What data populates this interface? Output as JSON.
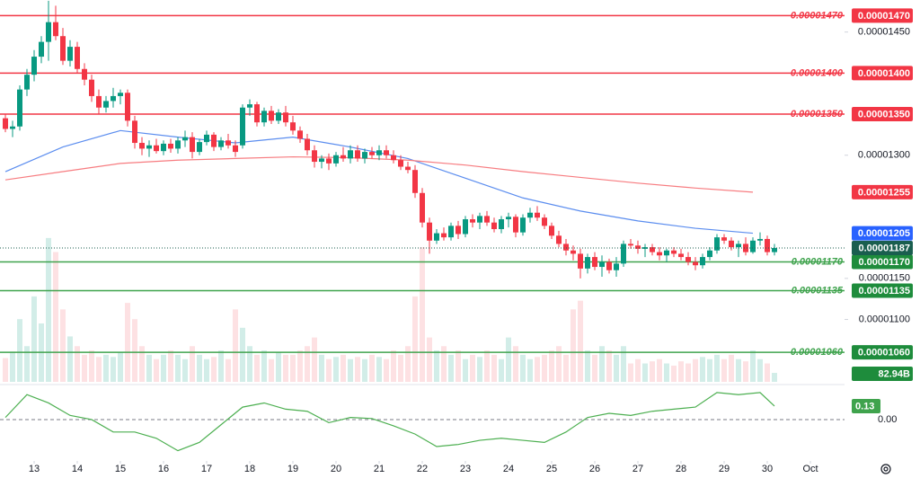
{
  "chart_data": {
    "type": "candlestick",
    "xlim": [
      -0.75,
      116.75
    ],
    "xticks": [
      {
        "value": 4,
        "label": "13"
      },
      {
        "value": 10,
        "label": "14"
      },
      {
        "value": 16,
        "label": "15"
      },
      {
        "value": 22,
        "label": "16"
      },
      {
        "value": 28,
        "label": "17"
      },
      {
        "value": 34,
        "label": "18"
      },
      {
        "value": 40,
        "label": "19"
      },
      {
        "value": 46,
        "label": "20"
      },
      {
        "value": 52,
        "label": "21"
      },
      {
        "value": 58,
        "label": "22"
      },
      {
        "value": 64,
        "label": "23"
      },
      {
        "value": 70,
        "label": "24"
      },
      {
        "value": 76,
        "label": "25"
      },
      {
        "value": 82,
        "label": "26"
      },
      {
        "value": 88,
        "label": "27"
      },
      {
        "value": 94,
        "label": "28"
      },
      {
        "value": 100,
        "label": "29"
      },
      {
        "value": 106,
        "label": "30"
      },
      {
        "value": 112,
        "label": "Oct"
      }
    ],
    "ylim": [
      1.024e-05,
      1.489e-05
    ],
    "yticks": [
      {
        "value": 1.45e-05,
        "label": "0.00001450"
      },
      {
        "value": 1.3e-05,
        "label": "0.00001300"
      },
      {
        "value": 1.15e-05,
        "label": "0.00001150"
      },
      {
        "value": 1.1e-05,
        "label": "0.00001100"
      }
    ],
    "up_color": "#089981",
    "down_color": "#f23645",
    "ohlc": [
      [
        1.345e-05,
        1.35e-05,
        1.328e-05,
        1.332e-05
      ],
      [
        1.332e-05,
        1.342e-05,
        1.322e-05,
        1.335e-05
      ],
      [
        1.335e-05,
        1.385e-05,
        1.33e-05,
        1.38e-05
      ],
      [
        1.38e-05,
        1.405e-05,
        1.372e-05,
        1.398e-05
      ],
      [
        1.398e-05,
        1.428e-05,
        1.39e-05,
        1.42e-05
      ],
      [
        1.42e-05,
        1.445e-05,
        1.412e-05,
        1.438e-05
      ],
      [
        1.438e-05,
        1.488e-05,
        1.415e-05,
        1.462e-05
      ],
      [
        1.462e-05,
        1.482e-05,
        1.44e-05,
        1.445e-05
      ],
      [
        1.445e-05,
        1.455e-05,
        1.41e-05,
        1.415e-05
      ],
      [
        1.415e-05,
        1.44e-05,
        1.408e-05,
        1.432e-05
      ],
      [
        1.432e-05,
        1.438e-05,
        1.4e-05,
        1.405e-05
      ],
      [
        1.405e-05,
        1.412e-05,
        1.385e-05,
        1.392e-05
      ],
      [
        1.392e-05,
        1.398e-05,
        1.365e-05,
        1.372e-05
      ],
      [
        1.372e-05,
        1.38e-05,
        1.35e-05,
        1.358e-05
      ],
      [
        1.358e-05,
        1.372e-05,
        1.352e-05,
        1.366e-05
      ],
      [
        1.366e-05,
        1.382e-05,
        1.358e-05,
        1.372e-05
      ],
      [
        1.372e-05,
        1.38e-05,
        1.362e-05,
        1.376e-05
      ],
      [
        1.376e-05,
        1.38e-05,
        1.335e-05,
        1.342e-05
      ],
      [
        1.342e-05,
        1.348e-05,
        1.308e-05,
        1.315e-05
      ],
      [
        1.315e-05,
        1.322e-05,
        1.3e-05,
        1.308e-05
      ],
      [
        1.308e-05,
        1.318e-05,
        1.298e-05,
        1.312e-05
      ],
      [
        1.312e-05,
        1.32e-05,
        1.302e-05,
        1.305e-05
      ],
      [
        1.305e-05,
        1.318e-05,
        1.3e-05,
        1.314e-05
      ],
      [
        1.314e-05,
        1.32e-05,
        1.303e-05,
        1.308e-05
      ],
      [
        1.308e-05,
        1.322e-05,
        1.302e-05,
        1.318e-05
      ],
      [
        1.318e-05,
        1.33e-05,
        1.31e-05,
        1.322e-05
      ],
      [
        1.322e-05,
        1.328e-05,
        1.296e-05,
        1.304e-05
      ],
      [
        1.304e-05,
        1.32e-05,
        1.3e-05,
        1.316e-05
      ],
      [
        1.316e-05,
        1.33e-05,
        1.312e-05,
        1.325e-05
      ],
      [
        1.325e-05,
        1.328e-05,
        1.305e-05,
        1.31e-05
      ],
      [
        1.31e-05,
        1.322e-05,
        1.306e-05,
        1.318e-05
      ],
      [
        1.318e-05,
        1.326e-05,
        1.308e-05,
        1.312e-05
      ],
      [
        1.312e-05,
        1.318e-05,
        1.298e-05,
        1.304e-05
      ],
      [
        1.312e-05,
        1.362e-05,
        1.308e-05,
        1.358e-05
      ],
      [
        1.358e-05,
        1.368e-05,
        1.348e-05,
        1.362e-05
      ],
      [
        1.362e-05,
        1.365e-05,
        1.335e-05,
        1.34e-05
      ],
      [
        1.34e-05,
        1.358e-05,
        1.335e-05,
        1.354e-05
      ],
      [
        1.354e-05,
        1.36e-05,
        1.338e-05,
        1.342e-05
      ],
      [
        1.342e-05,
        1.356e-05,
        1.338e-05,
        1.352e-05
      ],
      [
        1.352e-05,
        1.36e-05,
        1.335e-05,
        1.34e-05
      ],
      [
        1.34e-05,
        1.348e-05,
        1.325e-05,
        1.33e-05
      ],
      [
        1.33e-05,
        1.335e-05,
        1.315e-05,
        1.32e-05
      ],
      [
        1.32e-05,
        1.326e-05,
        1.3e-05,
        1.306e-05
      ],
      [
        1.306e-05,
        1.312e-05,
        1.285e-05,
        1.292e-05
      ],
      [
        1.292e-05,
        1.3e-05,
        1.284e-05,
        1.296e-05
      ],
      [
        1.296e-05,
        1.302e-05,
        1.282e-05,
        1.29e-05
      ],
      [
        1.29e-05,
        1.304e-05,
        1.286e-05,
        1.3e-05
      ],
      [
        1.3e-05,
        1.31e-05,
        1.292e-05,
        1.296e-05
      ],
      [
        1.296e-05,
        1.312e-05,
        1.29e-05,
        1.306e-05
      ],
      [
        1.306e-05,
        1.312e-05,
        1.292e-05,
        1.296e-05
      ],
      [
        1.296e-05,
        1.308e-05,
        1.29e-05,
        1.304e-05
      ],
      [
        1.304e-05,
        1.31e-05,
        1.296e-05,
        1.3e-05
      ],
      [
        1.3e-05,
        1.312e-05,
        1.294e-05,
        1.306e-05
      ],
      [
        1.306e-05,
        1.312e-05,
        1.296e-05,
        1.3e-05
      ],
      [
        1.3e-05,
        1.306e-05,
        1.29e-05,
        1.294e-05
      ],
      [
        1.294e-05,
        1.3e-05,
        1.282e-05,
        1.286e-05
      ],
      [
        1.286e-05,
        1.292e-05,
        1.278e-05,
        1.282e-05
      ],
      [
        1.282e-05,
        1.288e-05,
        1.248e-05,
        1.254e-05
      ],
      [
        1.254e-05,
        1.26e-05,
        1.212e-05,
        1.218e-05
      ],
      [
        1.218e-05,
        1.224e-05,
        1.18e-05,
        1.196e-05
      ],
      [
        1.196e-05,
        1.21e-05,
        1.192e-05,
        1.205e-05
      ],
      [
        1.205e-05,
        1.212e-05,
        1.196e-05,
        1.2e-05
      ],
      [
        1.2e-05,
        1.218e-05,
        1.196e-05,
        1.214e-05
      ],
      [
        1.214e-05,
        1.22e-05,
        1.198e-05,
        1.204e-05
      ],
      [
        1.204e-05,
        1.226e-05,
        1.2e-05,
        1.222e-05
      ],
      [
        1.222e-05,
        1.228e-05,
        1.212e-05,
        1.218e-05
      ],
      [
        1.218e-05,
        1.23e-05,
        1.21e-05,
        1.226e-05
      ],
      [
        1.226e-05,
        1.232e-05,
        1.214e-05,
        1.218e-05
      ],
      [
        1.218e-05,
        1.224e-05,
        1.206e-05,
        1.21e-05
      ],
      [
        1.21e-05,
        1.226e-05,
        1.205e-05,
        1.222e-05
      ],
      [
        1.222e-05,
        1.23e-05,
        1.212e-05,
        1.225e-05
      ],
      [
        1.225e-05,
        1.228e-05,
        1.2e-05,
        1.206e-05
      ],
      [
        1.206e-05,
        1.228e-05,
        1.202e-05,
        1.224e-05
      ],
      [
        1.224e-05,
        1.236e-05,
        1.218e-05,
        1.23e-05
      ],
      [
        1.23e-05,
        1.238e-05,
        1.22e-05,
        1.224e-05
      ],
      [
        1.224e-05,
        1.228e-05,
        1.21e-05,
        1.214e-05
      ],
      [
        1.214e-05,
        1.218e-05,
        1.198e-05,
        1.202e-05
      ],
      [
        1.202e-05,
        1.208e-05,
        1.188e-05,
        1.192e-05
      ],
      [
        1.192e-05,
        1.198e-05,
        1.178e-05,
        1.184e-05
      ],
      [
        1.184e-05,
        1.19e-05,
        1.172e-05,
        1.18e-05
      ],
      [
        1.18e-05,
        1.186e-05,
        1.15e-05,
        1.162e-05
      ],
      [
        1.162e-05,
        1.18e-05,
        1.156e-05,
        1.176e-05
      ],
      [
        1.176e-05,
        1.182e-05,
        1.16e-05,
        1.164e-05
      ],
      [
        1.164e-05,
        1.178e-05,
        1.152e-05,
        1.17e-05
      ],
      [
        1.17e-05,
        1.174e-05,
        1.156e-05,
        1.16e-05
      ],
      [
        1.16e-05,
        1.176e-05,
        1.152e-05,
        1.168e-05
      ],
      [
        1.168e-05,
        1.196e-05,
        1.164e-05,
        1.192e-05
      ],
      [
        1.192e-05,
        1.198e-05,
        1.186e-05,
        1.19e-05
      ],
      [
        1.19e-05,
        1.196e-05,
        1.18e-05,
        1.186e-05
      ],
      [
        1.186e-05,
        1.192e-05,
        1.176e-05,
        1.188e-05
      ],
      [
        1.188e-05,
        1.192e-05,
        1.178e-05,
        1.182e-05
      ],
      [
        1.182e-05,
        1.188e-05,
        1.172e-05,
        1.178e-05
      ],
      [
        1.178e-05,
        1.186e-05,
        1.17e-05,
        1.184e-05
      ],
      [
        1.184e-05,
        1.188e-05,
        1.176e-05,
        1.18e-05
      ],
      [
        1.18e-05,
        1.186e-05,
        1.172e-05,
        1.176e-05
      ],
      [
        1.176e-05,
        1.182e-05,
        1.166e-05,
        1.17e-05
      ],
      [
        1.17e-05,
        1.176e-05,
        1.16e-05,
        1.166e-05
      ],
      [
        1.166e-05,
        1.18e-05,
        1.162e-05,
        1.176e-05
      ],
      [
        1.176e-05,
        1.188e-05,
        1.172e-05,
        1.184e-05
      ],
      [
        1.184e-05,
        1.204e-05,
        1.18e-05,
        1.2e-05
      ],
      [
        1.2e-05,
        1.204e-05,
        1.192e-05,
        1.196e-05
      ],
      [
        1.196e-05,
        1.2e-05,
        1.184e-05,
        1.188e-05
      ],
      [
        1.188e-05,
        1.196e-05,
        1.176e-05,
        1.192e-05
      ],
      [
        1.192e-05,
        1.2e-05,
        1.178e-05,
        1.182e-05
      ],
      [
        1.182e-05,
        1.2e-05,
        1.18e-05,
        1.196e-05
      ],
      [
        1.196e-05,
        1.206e-05,
        1.19e-05,
        1.198e-05
      ],
      [
        1.198e-05,
        1.202e-05,
        1.178e-05,
        1.182e-05
      ],
      [
        1.182e-05,
        1.192e-05,
        1.178e-05,
        1.187e-05
      ]
    ],
    "volume": {
      "ylim": [
        0,
        3530
      ],
      "label_color": "#1e8c3c",
      "values": [
        220,
        280,
        580,
        330,
        790,
        540,
        1330,
        1200,
        670,
        420,
        330,
        250,
        290,
        230,
        250,
        230,
        270,
        730,
        580,
        330,
        250,
        210,
        250,
        290,
        250,
        210,
        330,
        250,
        210,
        230,
        290,
        210,
        670,
        500,
        330,
        250,
        290,
        210,
        270,
        250,
        250,
        290,
        330,
        410,
        250,
        210,
        230,
        250,
        210,
        230,
        210,
        250,
        230,
        210,
        290,
        250,
        330,
        790,
        1245,
        410,
        290,
        330,
        250,
        290,
        210,
        250,
        230,
        290,
        250,
        210,
        410,
        330,
        250,
        210,
        230,
        250,
        290,
        330,
        250,
        670,
        750,
        290,
        250,
        330,
        290,
        250,
        330,
        170,
        210,
        170,
        190,
        210,
        170,
        150,
        190,
        170,
        210,
        230,
        210,
        250,
        210,
        250,
        210,
        190,
        290,
        210,
        170,
        82.94
      ],
      "value_labels": [
        null,
        null,
        null,
        null,
        null,
        null,
        null,
        null,
        null,
        null,
        null,
        null,
        null,
        null,
        null,
        null,
        null,
        null,
        null,
        null,
        null,
        null,
        null,
        null,
        null,
        null,
        null,
        null,
        null,
        null,
        null,
        null,
        null,
        null,
        null,
        null,
        null,
        null,
        null,
        null,
        null,
        null,
        null,
        null,
        null,
        null,
        null,
        null,
        null,
        null,
        null,
        null,
        null,
        null,
        null,
        null,
        null,
        null,
        null,
        null,
        null,
        null,
        null,
        null,
        null,
        null,
        null,
        null,
        null,
        null,
        null,
        null,
        null,
        null,
        null,
        null,
        null,
        null,
        null,
        null,
        null,
        null,
        null,
        null,
        null,
        null,
        null,
        null,
        null,
        null,
        null,
        null,
        null,
        null,
        null,
        null,
        null,
        null,
        null,
        null,
        null,
        null,
        null,
        null,
        null,
        null,
        null,
        "82.94B"
      ]
    },
    "moving_averages": [
      {
        "color": "#5b8def",
        "x": [
          0,
          8,
          16,
          24,
          32,
          40,
          48,
          56,
          64,
          72,
          80,
          88,
          96,
          104
        ],
        "values": [
          1.28e-05,
          1.31e-05,
          1.33e-05,
          1.322e-05,
          1.315e-05,
          1.322e-05,
          1.31e-05,
          1.296e-05,
          1.272e-05,
          1.248e-05,
          1.232e-05,
          1.22e-05,
          1.211e-05,
          1.205e-05
        ],
        "value_labels": [
          null,
          null,
          null,
          null,
          null,
          null,
          null,
          null,
          null,
          null,
          null,
          null,
          null,
          "0.00001205"
        ]
      },
      {
        "color": "#f77c80",
        "x": [
          0,
          8,
          16,
          24,
          32,
          40,
          48,
          56,
          64,
          72,
          80,
          88,
          96,
          104
        ],
        "values": [
          1.27e-05,
          1.28e-05,
          1.29e-05,
          1.294e-05,
          1.296e-05,
          1.298e-05,
          1.297e-05,
          1.294e-05,
          1.288e-05,
          1.28e-05,
          1.273e-05,
          1.266e-05,
          1.26e-05,
          1.255e-05
        ],
        "value_labels": [
          null,
          null,
          null,
          null,
          null,
          null,
          null,
          null,
          null,
          null,
          null,
          null,
          null,
          "0.00001255"
        ]
      }
    ],
    "last_price": {
      "value": 1.187e-05,
      "label": "0.00001187",
      "color": "#1a5e4f"
    },
    "levels": [
      {
        "value": 1.47e-05,
        "label": "0.00001470",
        "color": "#f23645"
      },
      {
        "value": 1.4e-05,
        "label": "0.00001400",
        "color": "#f23645"
      },
      {
        "value": 1.35e-05,
        "label": "0.00001350",
        "color": "#f23645"
      },
      {
        "value": 1.17e-05,
        "label": "0.00001170",
        "color": "#3fa34d"
      },
      {
        "value": 1.135e-05,
        "label": "0.00001135",
        "color": "#3fa34d"
      },
      {
        "value": 1.06e-05,
        "label": "0.00001060",
        "color": "#3fa34d"
      }
    ],
    "indicator": {
      "color": "#4caf50",
      "ylim": [
        -0.39,
        0.32
      ],
      "yticks": [
        {
          "value": 0,
          "label": "0.00"
        }
      ],
      "x": [
        0,
        3,
        6,
        9,
        12,
        15,
        18,
        21,
        24,
        27,
        30,
        33,
        36,
        39,
        42,
        45,
        48,
        51,
        54,
        57,
        60,
        63,
        66,
        69,
        72,
        75,
        78,
        81,
        84,
        87,
        90,
        93,
        96,
        99,
        102,
        105,
        107
      ],
      "values": [
        0.02,
        0.24,
        0.16,
        0.04,
        0,
        -0.12,
        -0.12,
        -0.18,
        -0.3,
        -0.22,
        -0.05,
        0.12,
        0.16,
        0.1,
        0.08,
        -0.03,
        0.02,
        0.01,
        -0.06,
        -0.14,
        -0.26,
        -0.24,
        -0.2,
        -0.18,
        -0.2,
        -0.22,
        -0.12,
        0.02,
        0.06,
        0.04,
        0.08,
        0.1,
        0.12,
        0.26,
        0.24,
        0.26,
        0.13
      ],
      "value_labels": [
        null,
        null,
        null,
        null,
        null,
        null,
        null,
        null,
        null,
        null,
        null,
        null,
        null,
        null,
        null,
        null,
        null,
        null,
        null,
        null,
        null,
        null,
        null,
        null,
        null,
        null,
        null,
        null,
        null,
        null,
        null,
        null,
        null,
        null,
        null,
        null,
        "0.13"
      ]
    }
  }
}
